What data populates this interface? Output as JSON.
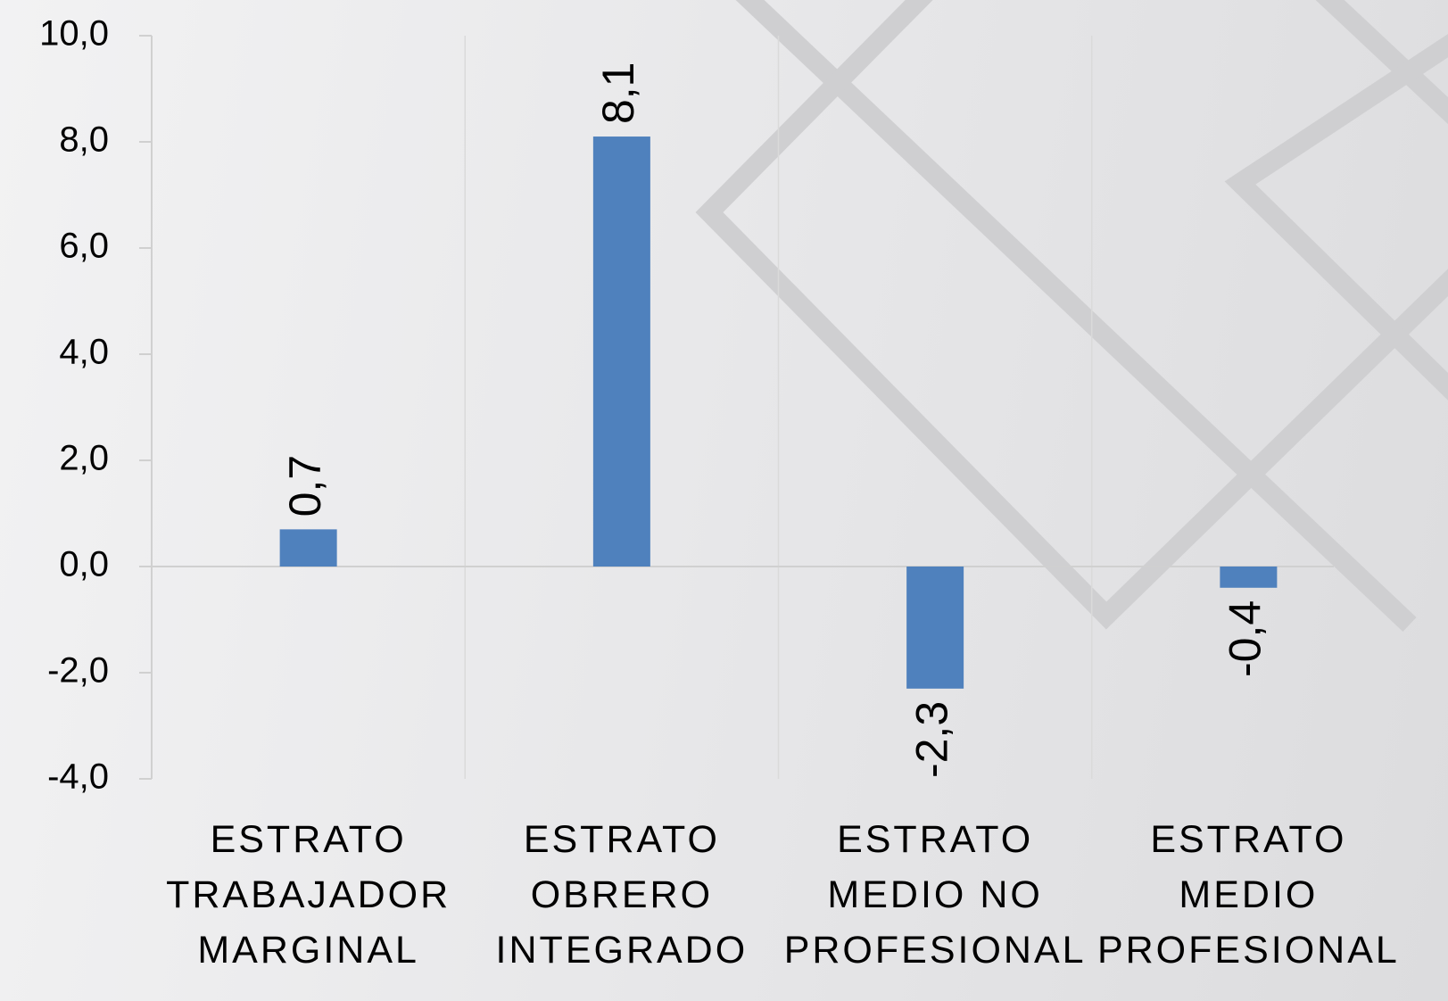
{
  "chart_data": {
    "type": "bar",
    "categories": [
      "ESTRATO TRABAJADOR MARGINAL",
      "ESTRATO OBRERO INTEGRADO",
      "ESTRATO MEDIO NO PROFESIONAL",
      "ESTRATO MEDIO PROFESIONAL"
    ],
    "values": [
      0.7,
      8.1,
      -2.3,
      -0.4
    ],
    "value_labels": [
      "0,7",
      "8,1",
      "-2,3",
      "-0,4"
    ],
    "color": "#4f81bd",
    "ylim": [
      -4,
      10
    ],
    "yticks": [
      {
        "value": -4,
        "label": "-4,0"
      },
      {
        "value": -2,
        "label": "-2,0"
      },
      {
        "value": 0,
        "label": "0,0"
      },
      {
        "value": 2,
        "label": "2,0"
      },
      {
        "value": 4,
        "label": "4,0"
      },
      {
        "value": 6,
        "label": "6,0"
      },
      {
        "value": 8,
        "label": "8,0"
      },
      {
        "value": 10,
        "label": "10,0"
      }
    ],
    "grid": true
  }
}
